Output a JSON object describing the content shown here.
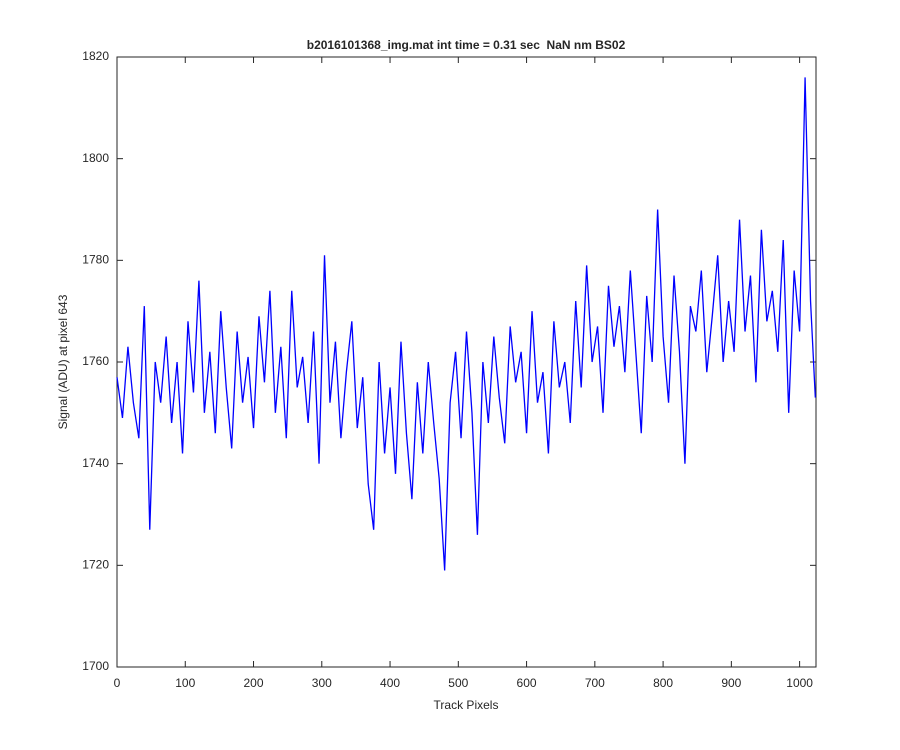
{
  "chart_data": {
    "type": "line",
    "title": "b2016101368_img.mat int time = 0.31 sec  NaN nm BS02",
    "x_label": "Track Pixels",
    "y_label": "Signal (ADU) at pixel 643",
    "xlim": [
      0,
      1024
    ],
    "xticks": [
      0,
      100,
      200,
      300,
      400,
      500,
      600,
      700,
      800,
      900,
      1000
    ],
    "ylim": [
      1700,
      1820
    ],
    "yticks": [
      1700,
      1720,
      1740,
      1760,
      1780,
      1800,
      1820
    ],
    "series": [
      {
        "color": "#0000ff",
        "x": [
          0,
          8,
          16,
          24,
          32,
          40,
          48,
          56,
          64,
          72,
          80,
          88,
          96,
          104,
          112,
          120,
          128,
          136,
          144,
          152,
          160,
          168,
          176,
          184,
          192,
          200,
          208,
          216,
          224,
          232,
          240,
          248,
          256,
          264,
          272,
          280,
          288,
          296,
          304,
          312,
          320,
          328,
          336,
          344,
          352,
          360,
          368,
          376,
          384,
          392,
          400,
          408,
          416,
          424,
          432,
          440,
          448,
          456,
          464,
          472,
          480,
          488,
          496,
          504,
          512,
          520,
          528,
          536,
          544,
          552,
          560,
          568,
          576,
          584,
          592,
          600,
          608,
          616,
          624,
          632,
          640,
          648,
          656,
          664,
          672,
          680,
          688,
          696,
          704,
          712,
          720,
          728,
          736,
          744,
          752,
          760,
          768,
          776,
          784,
          792,
          800,
          808,
          816,
          824,
          832,
          840,
          848,
          856,
          864,
          872,
          880,
          888,
          896,
          904,
          912,
          920,
          928,
          936,
          944,
          952,
          960,
          968,
          976,
          984,
          992,
          1000,
          1008,
          1016,
          1023
        ],
        "values": [
          1757,
          1749,
          1763,
          1752,
          1745,
          1771,
          1727,
          1760,
          1752,
          1765,
          1748,
          1760,
          1742,
          1768,
          1754,
          1776,
          1750,
          1762,
          1746,
          1770,
          1755,
          1743,
          1766,
          1752,
          1761,
          1747,
          1769,
          1756,
          1774,
          1750,
          1763,
          1745,
          1774,
          1755,
          1761,
          1748,
          1766,
          1740,
          1781,
          1752,
          1764,
          1745,
          1758,
          1768,
          1747,
          1757,
          1736,
          1727,
          1760,
          1742,
          1755,
          1738,
          1764,
          1746,
          1733,
          1756,
          1742,
          1760,
          1748,
          1737,
          1719,
          1752,
          1762,
          1745,
          1766,
          1750,
          1726,
          1760,
          1748,
          1765,
          1753,
          1744,
          1767,
          1756,
          1762,
          1746,
          1770,
          1752,
          1758,
          1742,
          1768,
          1755,
          1760,
          1748,
          1772,
          1755,
          1779,
          1760,
          1767,
          1750,
          1775,
          1763,
          1771,
          1758,
          1778,
          1762,
          1746,
          1773,
          1760,
          1790,
          1765,
          1752,
          1777,
          1762,
          1740,
          1771,
          1766,
          1778,
          1758,
          1769,
          1781,
          1760,
          1772,
          1762,
          1788,
          1766,
          1777,
          1756,
          1786,
          1768,
          1774,
          1762,
          1784,
          1750,
          1778,
          1766,
          1816,
          1772,
          1753
        ]
      }
    ]
  }
}
